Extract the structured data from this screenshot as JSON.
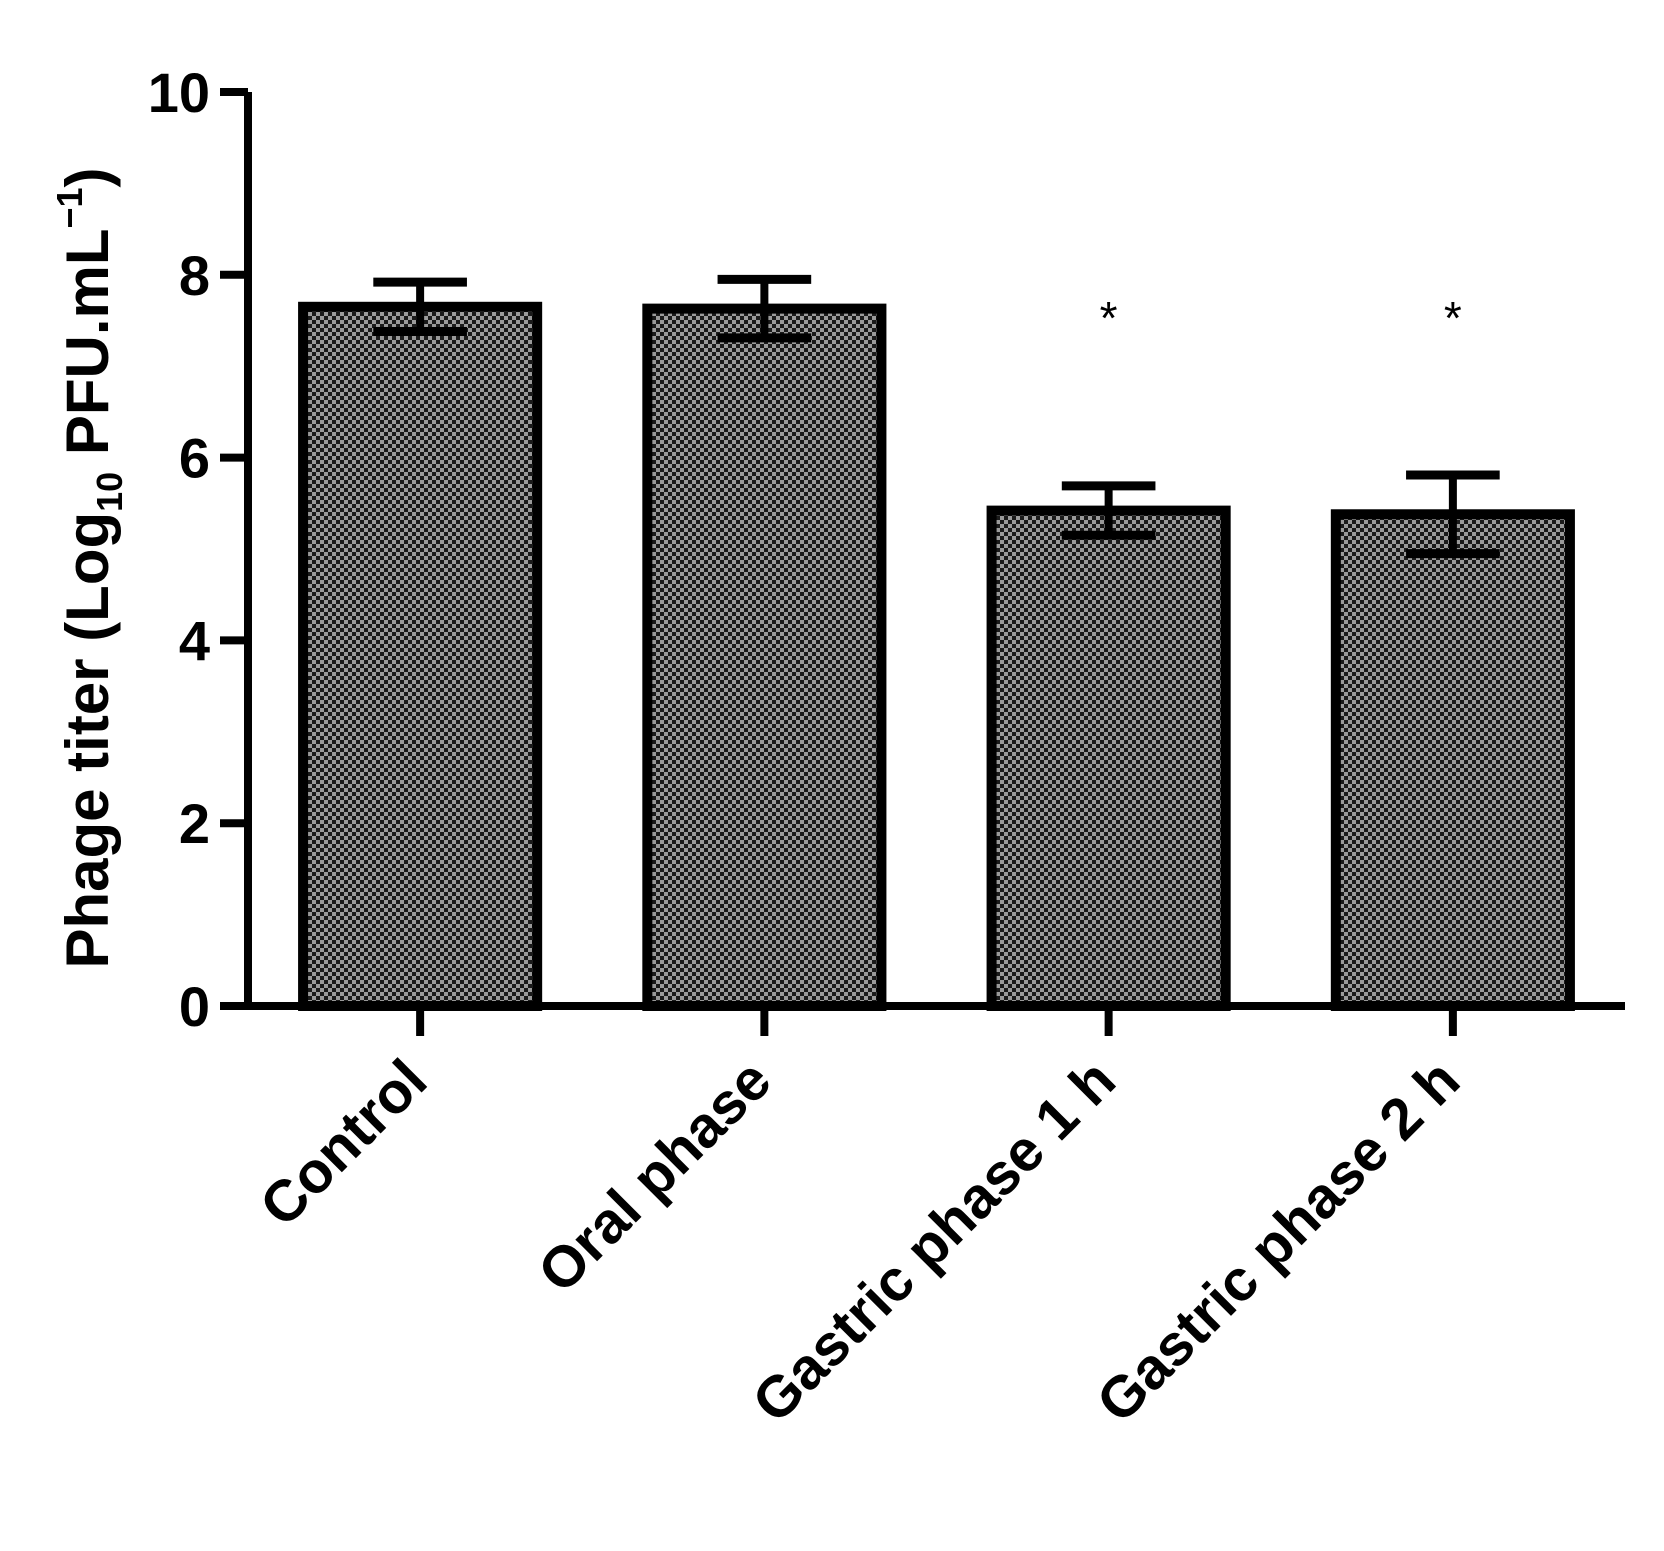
{
  "chart_data": {
    "type": "bar",
    "categories": [
      "Control",
      "Oral phase",
      "Gastric phase 1 h",
      "Gastric phase 2 h"
    ],
    "values": [
      7.65,
      7.63,
      5.42,
      5.38
    ],
    "errors": [
      0.27,
      0.32,
      0.27,
      0.43
    ],
    "significance": [
      "",
      "",
      "*",
      "*"
    ],
    "ylabel_main": "Phage titer (Log",
    "ylabel_sub": "10",
    "ylabel_unit": " PFU.mL",
    "ylabel_sup": "−1",
    "ylabel_close": ")",
    "ylim": [
      0,
      10
    ],
    "yticks": [
      "0",
      "2",
      "4",
      "6",
      "8",
      "10"
    ],
    "grid": false,
    "bar_pattern": "checkerboard",
    "colors": {
      "bar_fill_dark": "#1a1a1a",
      "bar_fill_light": "#9a9a9a",
      "stroke": "#000000"
    }
  }
}
